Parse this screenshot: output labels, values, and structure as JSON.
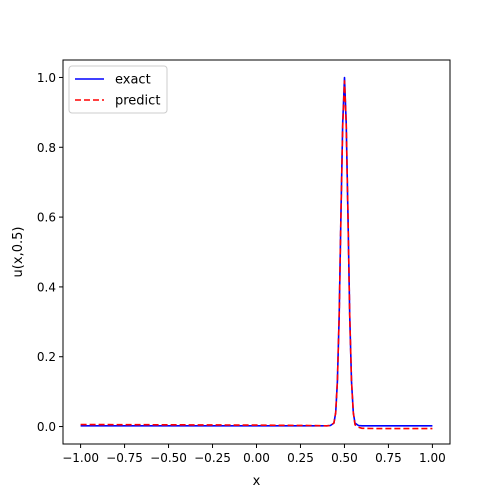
{
  "chart_data": {
    "type": "line",
    "xlabel": "x",
    "ylabel": "u(x,0.5)",
    "xlim": [
      -1.1,
      1.1
    ],
    "ylim": [
      -0.05,
      1.05
    ],
    "grid": false,
    "legend_position": "top-left",
    "x_ticks": [
      -1.0,
      -0.75,
      -0.5,
      -0.25,
      0.0,
      0.25,
      0.5,
      0.75,
      1.0
    ],
    "x_tick_labels": [
      "−1.00",
      "−0.75",
      "−0.50",
      "−0.25",
      "0.00",
      "0.25",
      "0.50",
      "0.75",
      "1.00"
    ],
    "y_ticks": [
      0.0,
      0.2,
      0.4,
      0.6,
      0.8,
      1.0
    ],
    "y_tick_labels": [
      "0.0",
      "0.2",
      "0.4",
      "0.6",
      "0.8",
      "1.0"
    ],
    "series": [
      {
        "name": "exact",
        "color": "#0000ff",
        "style": "solid",
        "x": [
          -1.0,
          -0.5,
          0.0,
          0.3,
          0.4,
          0.42,
          0.44,
          0.45,
          0.46,
          0.47,
          0.48,
          0.49,
          0.5,
          0.51,
          0.52,
          0.53,
          0.54,
          0.55,
          0.56,
          0.58,
          0.6,
          0.7,
          0.8,
          1.0
        ],
        "y": [
          0.002,
          0.002,
          0.002,
          0.002,
          0.002,
          0.003,
          0.01,
          0.04,
          0.13,
          0.32,
          0.6,
          0.87,
          1.0,
          0.87,
          0.6,
          0.32,
          0.13,
          0.04,
          0.01,
          0.003,
          0.002,
          0.002,
          0.002,
          0.002
        ]
      },
      {
        "name": "predict",
        "color": "#ff0000",
        "style": "dashed",
        "x": [
          -1.0,
          -0.5,
          0.0,
          0.3,
          0.4,
          0.42,
          0.44,
          0.45,
          0.46,
          0.47,
          0.48,
          0.49,
          0.5,
          0.51,
          0.52,
          0.53,
          0.54,
          0.55,
          0.56,
          0.58,
          0.6,
          0.7,
          0.8,
          1.0
        ],
        "y": [
          0.006,
          0.005,
          0.004,
          0.003,
          0.002,
          0.003,
          0.01,
          0.04,
          0.13,
          0.32,
          0.6,
          0.86,
          0.99,
          0.87,
          0.6,
          0.32,
          0.13,
          0.04,
          0.005,
          -0.002,
          -0.005,
          -0.006,
          -0.006,
          -0.006
        ]
      }
    ]
  }
}
